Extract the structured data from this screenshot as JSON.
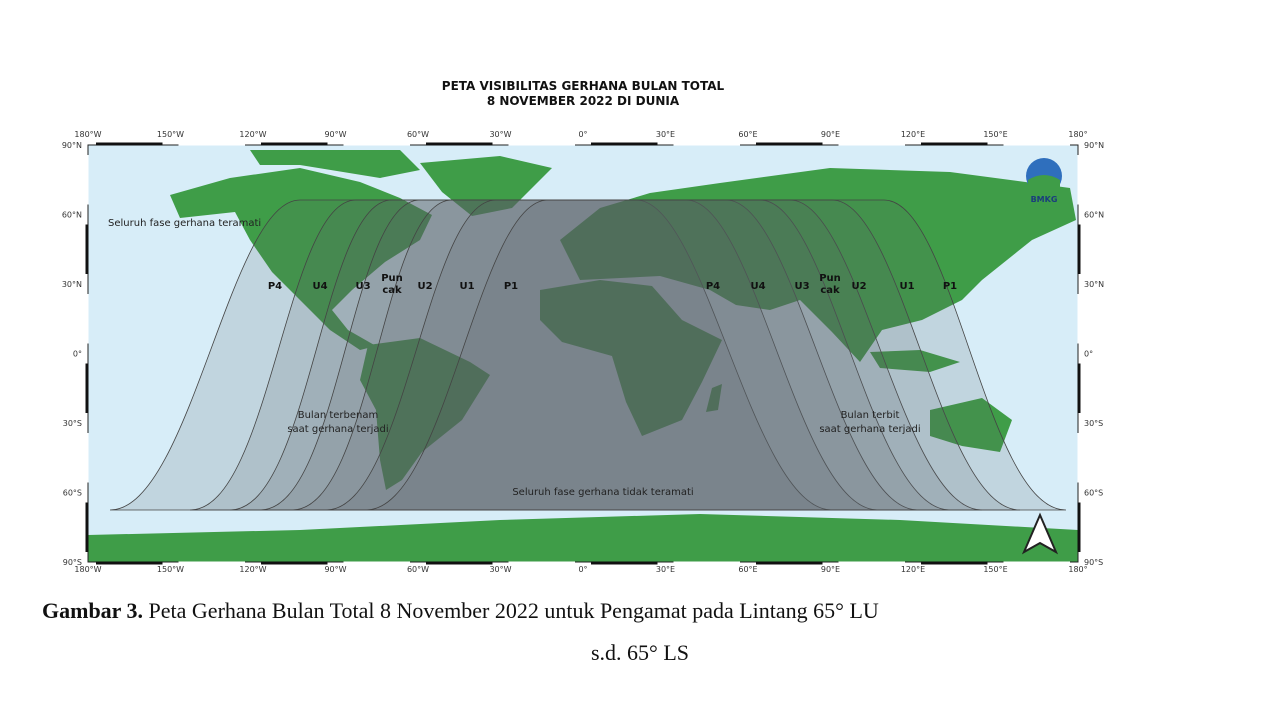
{
  "map": {
    "title": [
      "PETA VISIBILITAS GERHANA BULAN TOTAL",
      "8 NOVEMBER 2022 DI DUNIA"
    ],
    "lon_labels": [
      "180°W",
      "150°W",
      "120°W",
      "90°W",
      "60°W",
      "30°W",
      "0°",
      "30°E",
      "60°E",
      "90°E",
      "120°E",
      "150°E",
      "180°"
    ],
    "lat_labels": [
      "90°N",
      "60°N",
      "30°N",
      "0°",
      "30°S",
      "60°S",
      "90°S"
    ],
    "regions": {
      "all_visible": "Seluruh fase gerhana teramati",
      "moonset": [
        "Bulan terbenam",
        "saat gerhana terjadi"
      ],
      "moonrise": [
        "Bulan terbit",
        "saat gerhana terjadi"
      ],
      "not_visible": "Seluruh fase gerhana tidak teramati"
    },
    "curve_labels_west": [
      "P4",
      "U4",
      "U3",
      [
        "Pun",
        "cak"
      ],
      "U2",
      "U1",
      "P1"
    ],
    "curve_labels_east": [
      "P4",
      "U4",
      "U3",
      [
        "Pun",
        "cak"
      ],
      "U2",
      "U1",
      "P1"
    ],
    "logo": "BMKG"
  },
  "caption": {
    "label": "Gambar 3.",
    "line1": "Peta Gerhana Bulan Total 8 November 2022 untuk Pengamat pada Lintang 65° LU",
    "line2": "s.d. 65° LS"
  }
}
